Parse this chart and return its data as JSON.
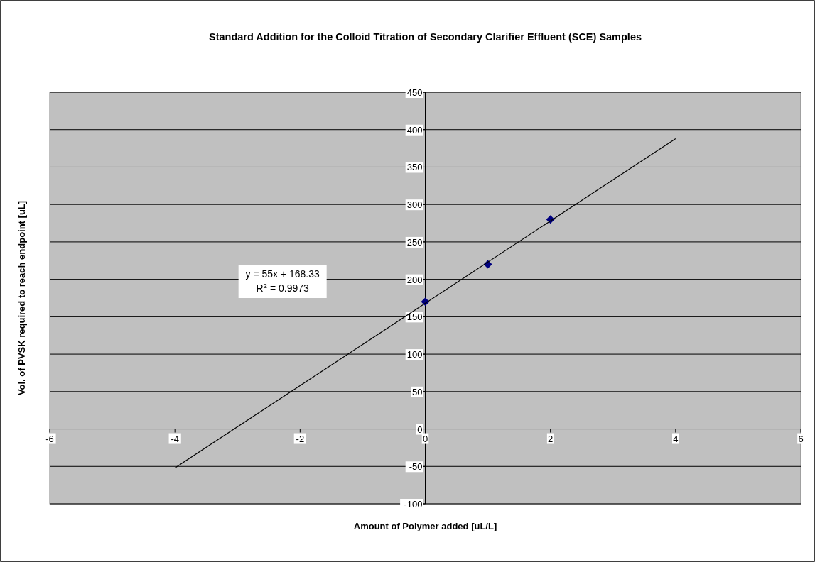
{
  "chart_data": {
    "type": "scatter",
    "title": "Standard Addition for the Colloid Titration of Secondary Clarifier Effluent (SCE) Samples",
    "xlabel": "Amount of Polymer added [uL/L]",
    "ylabel": "Vol. of PVSK required to reach endpoint [uL]",
    "xlim": [
      -6,
      6
    ],
    "xticks": [
      -6,
      -4,
      -2,
      0,
      2,
      4,
      6
    ],
    "ylim": [
      -100,
      450
    ],
    "yticks": [
      -100,
      -50,
      0,
      50,
      100,
      150,
      200,
      250,
      300,
      350,
      400,
      450
    ],
    "grid": "y",
    "marker": "diamond",
    "series": [
      {
        "color": "#000080",
        "x": [
          0,
          1,
          2
        ],
        "values": [
          170,
          220,
          280
        ]
      },
      {
        "type": "line",
        "color": "#000000",
        "x": [
          -4,
          4
        ],
        "values": [
          -52,
          388
        ],
        "marker": "none",
        "line_style": "solid"
      }
    ],
    "annotations": [
      "y = 55x + 168.33",
      "R$^{2}$ = 0.9973"
    ]
  }
}
